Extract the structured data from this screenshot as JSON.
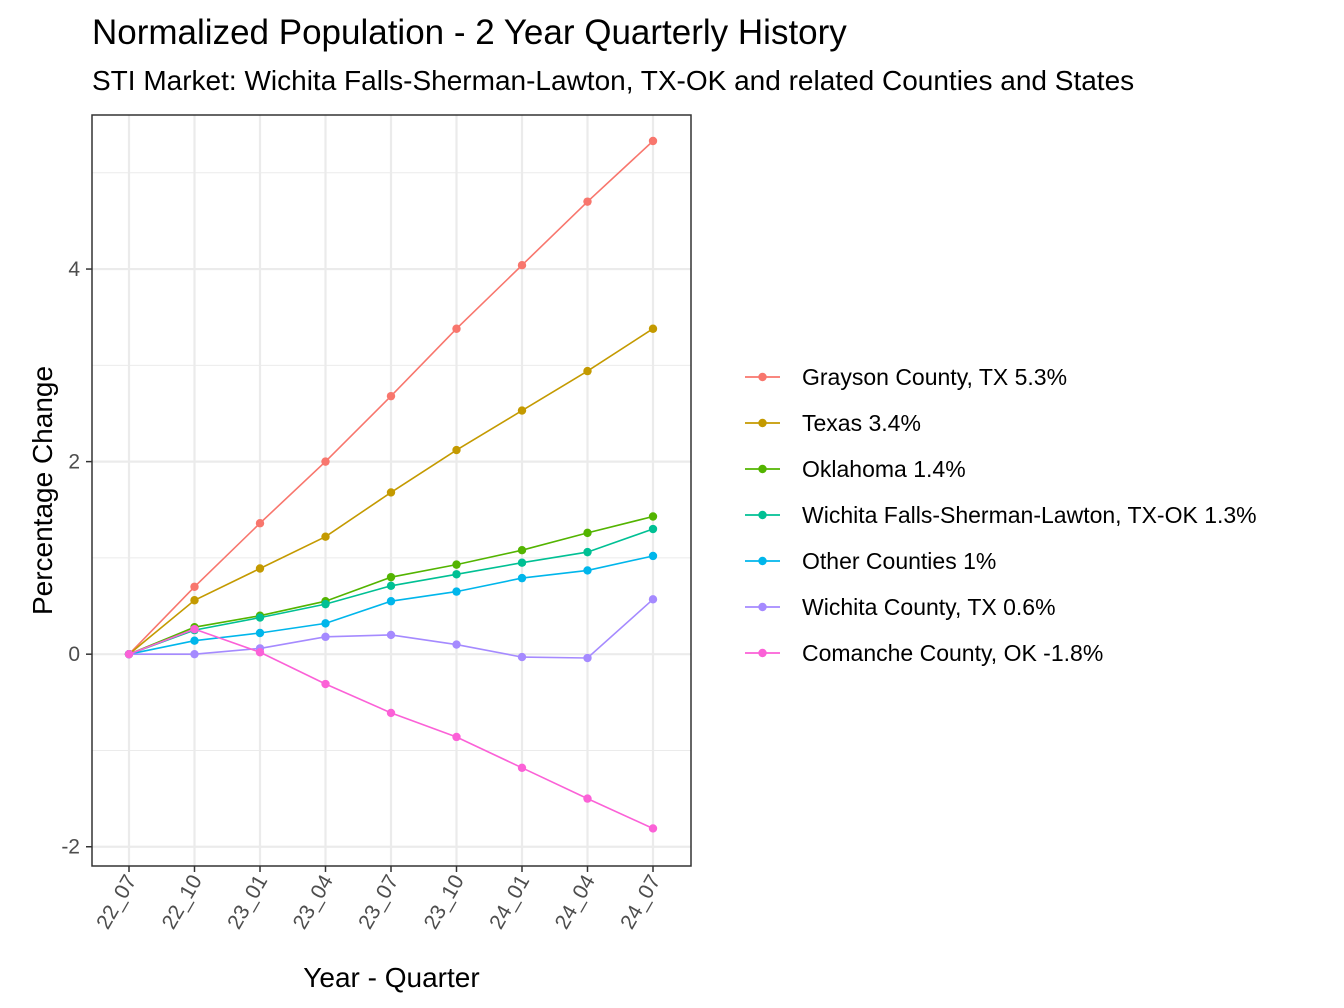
{
  "chart_data": {
    "type": "line",
    "title": "Normalized Population - 2 Year Quarterly History",
    "subtitle": "STI Market: Wichita Falls-Sherman-Lawton, TX-OK and related Counties and States",
    "xlabel": "Year - Quarter",
    "ylabel": "Percentage Change",
    "categories": [
      "22_07",
      "22_10",
      "23_01",
      "23_04",
      "23_07",
      "23_10",
      "24_01",
      "24_04",
      "24_07"
    ],
    "ylim": [
      -2.2,
      5.6
    ],
    "yticks": [
      -2,
      0,
      2,
      4
    ],
    "grid": true,
    "legend_position": "right",
    "series": [
      {
        "name": "Grayson County, TX 5.3%",
        "color": "#F8766D",
        "values": [
          0,
          0.7,
          1.36,
          2.0,
          2.68,
          3.38,
          4.04,
          4.7,
          5.33
        ]
      },
      {
        "name": "Texas 3.4%",
        "color": "#C49A00",
        "values": [
          0,
          0.56,
          0.89,
          1.22,
          1.68,
          2.12,
          2.53,
          2.94,
          3.38
        ]
      },
      {
        "name": "Oklahoma 1.4%",
        "color": "#53B400",
        "values": [
          0,
          0.28,
          0.4,
          0.55,
          0.8,
          0.93,
          1.08,
          1.26,
          1.43
        ]
      },
      {
        "name": "Wichita Falls-Sherman-Lawton, TX-OK 1.3%",
        "color": "#00C094",
        "values": [
          0,
          0.25,
          0.38,
          0.52,
          0.71,
          0.83,
          0.95,
          1.06,
          1.3
        ]
      },
      {
        "name": "Other Counties 1%",
        "color": "#00B6EB",
        "values": [
          0,
          0.14,
          0.22,
          0.32,
          0.55,
          0.65,
          0.79,
          0.87,
          1.02
        ]
      },
      {
        "name": "Wichita County, TX 0.6%",
        "color": "#A58AFF",
        "values": [
          0,
          0.0,
          0.06,
          0.18,
          0.2,
          0.1,
          -0.03,
          -0.04,
          0.57
        ]
      },
      {
        "name": "Comanche County, OK -1.8%",
        "color": "#FB61D7",
        "values": [
          0,
          0.26,
          0.02,
          -0.31,
          -0.61,
          -0.86,
          -1.18,
          -1.5,
          -1.81
        ]
      }
    ]
  }
}
